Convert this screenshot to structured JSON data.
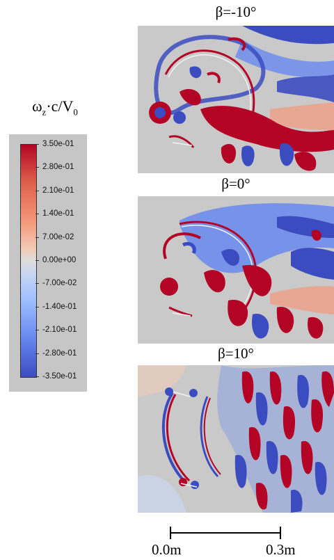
{
  "colorbar": {
    "title_main": "ω",
    "title_sub": "z",
    "title_rest": "·c/V",
    "title_sub2": "0",
    "ticks": [
      "3.50e-01",
      "2.80e-01",
      "2.10e-01",
      "1.40e-01",
      "7.00e-02",
      "0.00e+00",
      "-7.00e-02",
      "-1.40e-01",
      "-2.10e-01",
      "-2.80e-01",
      "-3.50e-01"
    ],
    "colors": {
      "positive": "#b40426",
      "zero": "#dddcdc",
      "negative": "#3b4cc0"
    }
  },
  "panels": [
    {
      "title": "β=-10°"
    },
    {
      "title": "β=0°"
    },
    {
      "title": "β=10°"
    }
  ],
  "scale_bar": {
    "left_label": "0.0m",
    "right_label": "0.3m"
  }
}
